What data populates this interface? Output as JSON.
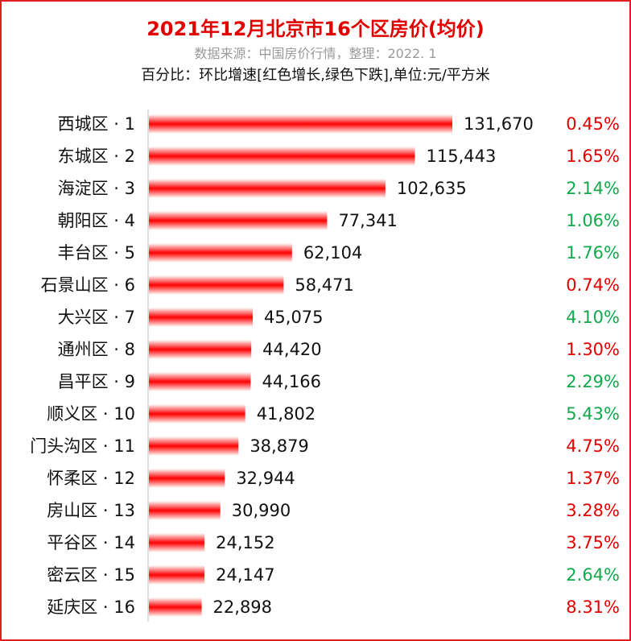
{
  "colors": {
    "border": "#e02020",
    "bar": "#ff0000",
    "up": "#e00000",
    "down": "#12a84b"
  },
  "chart_data": {
    "type": "bar",
    "orientation": "horizontal",
    "title": "2021年12月北京市16个区房价(均价)",
    "subtitle": "数据来源：中国房价行情，整理：2022. 1",
    "note": "百分比：环比增速[红色增长,绿色下跌],单位:元/平方米",
    "xlim": [
      0,
      131670
    ],
    "categories": [
      "西城区 · 1",
      "东城区 · 2",
      "海淀区 · 3",
      "朝阳区 · 4",
      "丰台区 · 5",
      "石景山区 · 6",
      "大兴区 · 7",
      "通州区 · 8",
      "昌平区 · 9",
      "顺义区 · 10",
      "门头沟区 · 11",
      "怀柔区 · 12",
      "房山区 · 13",
      "平谷区 · 14",
      "密云区 · 15",
      "延庆区 · 16"
    ],
    "values": [
      131670,
      115443,
      102635,
      77341,
      62104,
      58471,
      45075,
      44420,
      44166,
      41802,
      38879,
      32944,
      30990,
      24152,
      24147,
      22898
    ],
    "value_labels": [
      "131,670",
      "115,443",
      "102,635",
      "77,341",
      "62,104",
      "58,471",
      "45,075",
      "44,420",
      "44,166",
      "41,802",
      "38,879",
      "32,944",
      "30,990",
      "24,152",
      "24,147",
      "22,898"
    ],
    "changes": [
      "0.45%",
      "1.65%",
      "2.14%",
      "1.06%",
      "1.76%",
      "0.74%",
      "4.10%",
      "1.30%",
      "2.29%",
      "5.43%",
      "4.75%",
      "1.37%",
      "3.28%",
      "3.75%",
      "2.64%",
      "8.31%"
    ],
    "change_direction": [
      "up",
      "up",
      "down",
      "down",
      "down",
      "up",
      "down",
      "up",
      "down",
      "down",
      "up",
      "up",
      "up",
      "up",
      "down",
      "up"
    ]
  }
}
